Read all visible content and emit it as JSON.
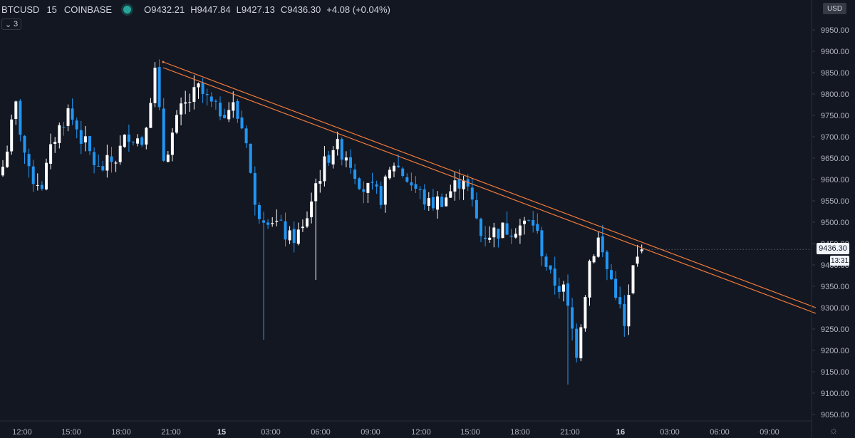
{
  "legend": {
    "symbol": "BTCUSD",
    "interval": "15",
    "exchange": "COINBASE",
    "open": "O9432.21",
    "high": "H9447.84",
    "low": "L9427.13",
    "close": "C9436.30",
    "change": "+4.08 (+0.04%)"
  },
  "collapse_count": "3",
  "currency": "USD",
  "last_price_label": "9436.30",
  "countdown_label": "13:31",
  "colors": {
    "background": "#131722",
    "up": "#ffffff",
    "down": "#2196f3",
    "trendline": "#f57c3a"
  },
  "chart_data": {
    "type": "candlestick",
    "y_axis_labels": [
      "9950.00",
      "9900.00",
      "9850.00",
      "9800.00",
      "9750.00",
      "9700.00",
      "9650.00",
      "9600.00",
      "9550.00",
      "9500.00",
      "9450.00",
      "9400.00",
      "9350.00",
      "9300.00",
      "9250.00",
      "9200.00",
      "9150.00",
      "9100.00",
      "9050.00"
    ],
    "x_axis_labels": [
      "12:00",
      "15:00",
      "18:00",
      "21:00",
      "15",
      "03:00",
      "06:00",
      "09:00",
      "12:00",
      "15:00",
      "18:00",
      "21:00",
      "16",
      "03:00",
      "06:00",
      "09:00"
    ],
    "ylim": [
      9020,
      9995
    ],
    "anchors": [
      {
        "i": 0,
        "p": 9630
      },
      {
        "i": 3,
        "p": 9770
      },
      {
        "i": 6,
        "p": 9610
      },
      {
        "i": 9,
        "p": 9590
      },
      {
        "i": 12,
        "p": 9700
      },
      {
        "i": 15,
        "p": 9760
      },
      {
        "i": 18,
        "p": 9700
      },
      {
        "i": 22,
        "p": 9620
      },
      {
        "i": 26,
        "p": 9650
      },
      {
        "i": 29,
        "p": 9710
      },
      {
        "i": 32,
        "p": 9690
      },
      {
        "i": 35,
        "p": 9850
      },
      {
        "i": 37,
        "p": 9650
      },
      {
        "i": 41,
        "p": 9760
      },
      {
        "i": 45,
        "p": 9810
      },
      {
        "i": 49,
        "p": 9760
      },
      {
        "i": 53,
        "p": 9770
      },
      {
        "i": 56,
        "p": 9700
      },
      {
        "i": 58,
        "p": 9530
      },
      {
        "i": 62,
        "p": 9510
      },
      {
        "i": 66,
        "p": 9460
      },
      {
        "i": 69,
        "p": 9480
      },
      {
        "i": 72,
        "p": 9590
      },
      {
        "i": 76,
        "p": 9680
      },
      {
        "i": 79,
        "p": 9660
      },
      {
        "i": 83,
        "p": 9580
      },
      {
        "i": 87,
        "p": 9560
      },
      {
        "i": 90,
        "p": 9640
      },
      {
        "i": 94,
        "p": 9590
      },
      {
        "i": 98,
        "p": 9540
      },
      {
        "i": 102,
        "p": 9560
      },
      {
        "i": 106,
        "p": 9610
      },
      {
        "i": 110,
        "p": 9470
      },
      {
        "i": 114,
        "p": 9480
      },
      {
        "i": 118,
        "p": 9490
      },
      {
        "i": 122,
        "p": 9500
      },
      {
        "i": 126,
        "p": 9370
      },
      {
        "i": 129,
        "p": 9340
      },
      {
        "i": 132,
        "p": 9200
      },
      {
        "i": 135,
        "p": 9410
      },
      {
        "i": 137,
        "p": 9460
      },
      {
        "i": 139,
        "p": 9390
      },
      {
        "i": 141,
        "p": 9340
      },
      {
        "i": 143,
        "p": 9250
      },
      {
        "i": 145,
        "p": 9390
      },
      {
        "i": 147,
        "p": 9436.3
      }
    ],
    "last_bar": {
      "open": 9432.21,
      "high": 9447.84,
      "low": 9427.13,
      "close": 9436.3
    },
    "trendline": [
      {
        "x": "21:00 (14th)",
        "y": 9875
      },
      {
        "x": "beyond 09:00 (16th)",
        "y": 9300
      }
    ]
  }
}
